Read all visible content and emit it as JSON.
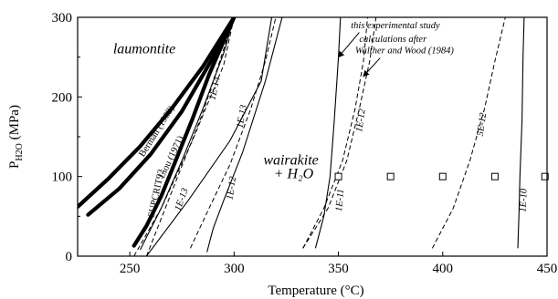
{
  "chart_data": {
    "type": "line",
    "xlabel": "Temperature (°C)",
    "ylabel": "PH2O (MPa)",
    "xlim": [
      225,
      450
    ],
    "ylim": [
      0,
      300
    ],
    "xticks": [
      250,
      300,
      350,
      400,
      450
    ],
    "yticks": [
      0,
      100,
      200,
      300
    ],
    "grid": false,
    "regions": [
      {
        "id": "laumontite",
        "text": "laumontite",
        "x": 242,
        "y": 255
      },
      {
        "id": "wairakite1",
        "text": "wairakite",
        "x": 314,
        "y": 115
      },
      {
        "id": "wairakite2",
        "text": "+ H₂O",
        "x": 319,
        "y": 98
      }
    ],
    "boundaries": [
      {
        "name": "Berman (1988)",
        "style": "thick",
        "x": [
          225,
          240,
          255,
          270,
          285,
          300
        ],
        "y": [
          62,
          98,
          138,
          185,
          238,
          300
        ],
        "label_at": [
          264,
          155
        ],
        "label_angle": -58
      },
      {
        "name": "Liou (1971)",
        "style": "thick",
        "x": [
          230,
          245,
          260,
          275,
          290,
          300
        ],
        "y": [
          52,
          85,
          128,
          182,
          250,
          300
        ],
        "label_at": [
          271,
          123
        ],
        "label_angle": -64
      },
      {
        "name": "SUPCRIT92",
        "style": "thick",
        "x": [
          252,
          258,
          265,
          272,
          280,
          288,
          295,
          300
        ],
        "y": [
          13,
          38,
          75,
          120,
          172,
          228,
          270,
          300
        ],
        "label_at": [
          264,
          78
        ],
        "label_angle": -78
      }
    ],
    "isopleths_experimental": [
      {
        "name": "1E-14",
        "x": [
          255,
          265,
          275,
          285,
          295,
          300
        ],
        "y": [
          8,
          60,
          120,
          185,
          255,
          300
        ],
        "label_at": [
          292,
          210
        ],
        "label_angle": -78
      },
      {
        "name": "1E-13",
        "x": [
          258,
          278,
          298,
          313,
          318
        ],
        "y": [
          0,
          70,
          145,
          220,
          300
        ],
        "label_at": [
          305,
          175
        ],
        "label_angle": -80
      },
      {
        "name": "1E-12",
        "x": [
          287,
          290,
          295,
          304,
          315,
          323
        ],
        "y": [
          5,
          35,
          70,
          130,
          220,
          300
        ],
        "label_at": [
          300,
          85
        ],
        "label_angle": -82
      },
      {
        "name": "1E-11",
        "x": [
          339,
          343,
          346,
          348,
          350,
          351
        ],
        "y": [
          10,
          50,
          100,
          170,
          250,
          300
        ],
        "label_at": [
          352,
          70
        ],
        "label_angle": -85
      },
      {
        "name": "1E-10",
        "x": [
          436,
          436.5,
          437,
          438,
          438.5,
          439
        ],
        "y": [
          10,
          50,
          100,
          170,
          250,
          300
        ],
        "label_at": [
          440,
          70
        ],
        "label_angle": -88
      }
    ],
    "isopleths_calculated": [
      {
        "name": "1E-13",
        "x": [
          252,
          265,
          280,
          295,
          300
        ],
        "y": [
          0,
          60,
          145,
          240,
          300
        ],
        "label_at": [
          276,
          70
        ],
        "label_angle": -70
      },
      {
        "name": "1E-14",
        "x": [
          258,
          270,
          285,
          300
        ],
        "y": [
          0,
          80,
          180,
          300
        ],
        "label_at": [
          0,
          0
        ]
      },
      {
        "name": "1E-12",
        "x": [
          279,
          288,
          298,
          308,
          315,
          320
        ],
        "y": [
          10,
          60,
          115,
          185,
          245,
          300
        ],
        "label_at": [
          0,
          0
        ]
      },
      {
        "name": "1E-11",
        "x": [
          333,
          343,
          352,
          358,
          362,
          364
        ],
        "y": [
          10,
          60,
          120,
          185,
          245,
          300
        ],
        "label_at": [
          0,
          0
        ]
      },
      {
        "name": "1E-12",
        "x": [
          333,
          345,
          354,
          360,
          365,
          368
        ],
        "y": [
          10,
          60,
          120,
          185,
          245,
          300
        ],
        "label_at": [
          362,
          170
        ],
        "label_angle": -82
      },
      {
        "name": "5E-12",
        "x": [
          395,
          405,
          413,
          420,
          425,
          430
        ],
        "y": [
          10,
          60,
          120,
          185,
          245,
          300
        ],
        "label_at": [
          420,
          165
        ],
        "label_angle": -82
      }
    ],
    "experiments": {
      "marker": "open-square",
      "x": [
        350,
        375,
        400,
        425,
        449
      ],
      "y": [
        100,
        100,
        100,
        100,
        100
      ]
    },
    "annotations": [
      {
        "id": "note1",
        "text": "this experimental study",
        "x": 356,
        "y": 286
      },
      {
        "id": "note2",
        "text": "calculations after",
        "x": 360,
        "y": 269
      },
      {
        "id": "note3",
        "text": "Walther and Wood (1984)",
        "x": 358,
        "y": 255
      }
    ]
  }
}
